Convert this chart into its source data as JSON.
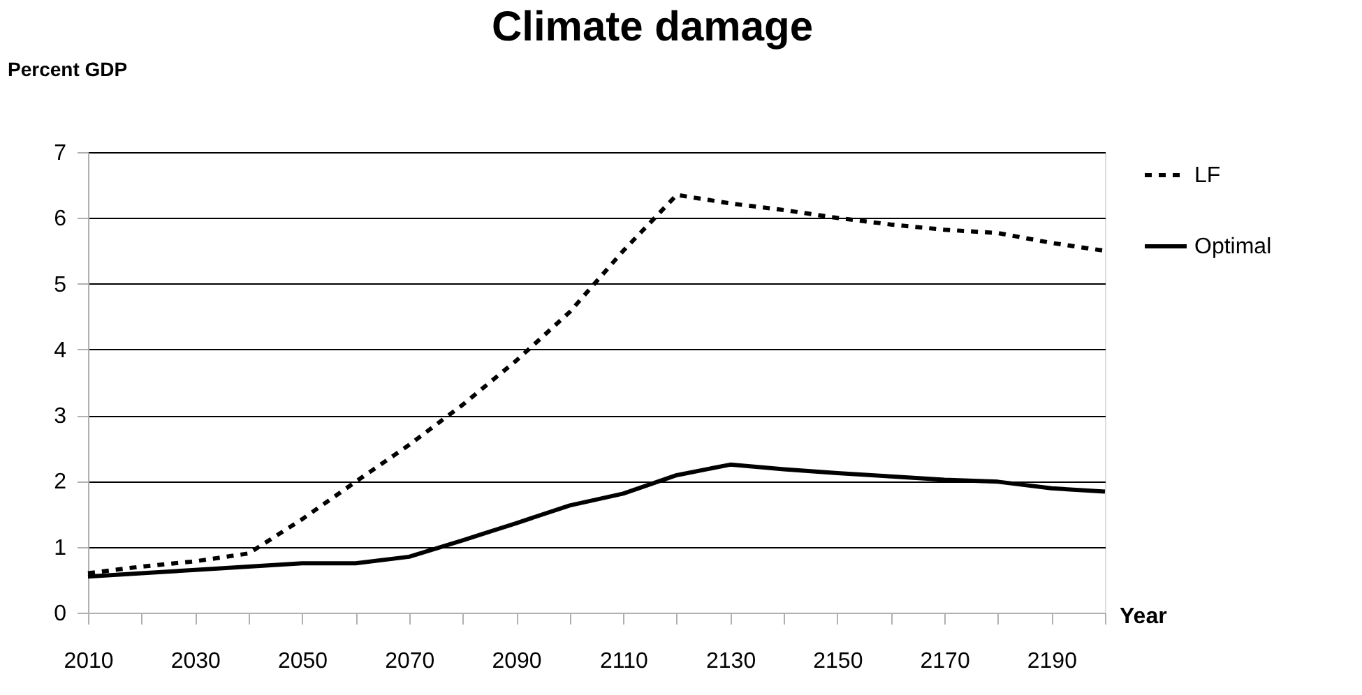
{
  "chart_data": {
    "type": "line",
    "title": "Climate damage",
    "xlabel": "Year",
    "ylabel": "Percent GDP",
    "x": [
      2010,
      2020,
      2030,
      2040,
      2050,
      2060,
      2070,
      2080,
      2090,
      2100,
      2110,
      2120,
      2130,
      2140,
      2150,
      2160,
      2170,
      2180,
      2190,
      2200
    ],
    "series": [
      {
        "name": "LF",
        "color": "#000000",
        "line_style": "dotted",
        "values": [
          0.6,
          0.7,
          0.78,
          0.9,
          1.42,
          1.99,
          2.55,
          3.16,
          3.83,
          4.57,
          5.5,
          6.35,
          6.22,
          6.12,
          6.0,
          5.9,
          5.82,
          5.77,
          5.62,
          5.5
        ]
      },
      {
        "name": "Optimal",
        "color": "#000000",
        "line_style": "solid",
        "values": [
          0.55,
          0.6,
          0.65,
          0.7,
          0.75,
          0.75,
          0.85,
          1.1,
          1.36,
          1.63,
          1.81,
          2.09,
          2.25,
          2.18,
          2.12,
          2.07,
          2.02,
          1.99,
          1.89,
          1.84
        ]
      }
    ],
    "xlim": [
      2010,
      2200
    ],
    "xticks": [
      2010,
      {
        "value": 2020,
        "label": null
      },
      2030,
      {
        "value": 2040,
        "label": null
      },
      2050,
      {
        "value": 2060,
        "label": null
      },
      2070,
      {
        "value": 2080,
        "label": null
      },
      2090,
      {
        "value": 2100,
        "label": null
      },
      2110,
      {
        "value": 2120,
        "label": null
      },
      2130,
      {
        "value": 2140,
        "label": null
      },
      2150,
      {
        "value": 2160,
        "label": null
      },
      2170,
      {
        "value": 2180,
        "label": null
      },
      2190,
      {
        "value": 2200,
        "label": null
      }
    ],
    "ylim": [
      0,
      7
    ],
    "yticks": [
      0,
      1,
      2,
      3,
      4,
      5,
      6,
      7
    ],
    "grid": "y",
    "legend": "right",
    "marker": "none"
  }
}
